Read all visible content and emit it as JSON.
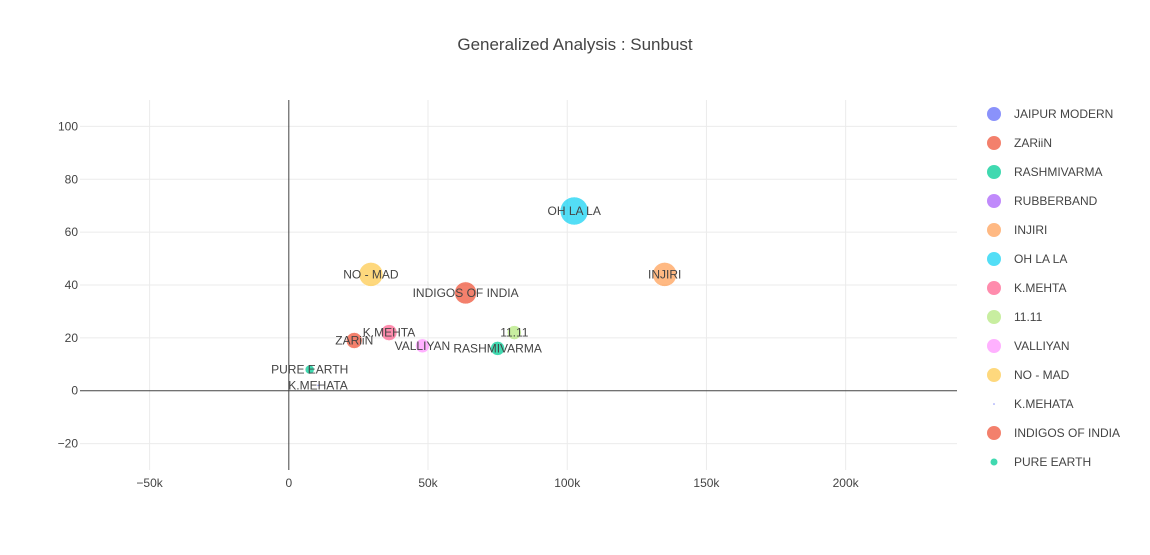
{
  "chart_data": {
    "type": "scatter",
    "title": "Generalized Analysis : Sunbust",
    "xlabel": "",
    "ylabel": "",
    "xlim": [
      -75000,
      240000
    ],
    "ylim": [
      -30,
      110
    ],
    "x_ticks": [
      -50000,
      0,
      50000,
      100000,
      150000,
      200000
    ],
    "x_tick_labels": [
      "−50k",
      "0",
      "50k",
      "100k",
      "150k",
      "200k"
    ],
    "y_ticks": [
      -20,
      0,
      20,
      40,
      60,
      80,
      100
    ],
    "y_tick_labels": [
      "−20",
      "0",
      "20",
      "40",
      "60",
      "80",
      "100"
    ],
    "grid": true,
    "legend_position": "right",
    "series": [
      {
        "name": "JAIPUR MODERN",
        "color": "#636efa",
        "x": null,
        "y": null,
        "size": 0,
        "label": ""
      },
      {
        "name": "ZARiiN",
        "color": "#EF553B",
        "x": 23500,
        "y": 19,
        "size": 16,
        "label": "ZARiiN"
      },
      {
        "name": "RASHMIVARMA",
        "color": "#00cc96",
        "x": 75000,
        "y": 16,
        "size": 14,
        "label": "RASHMIVARMA"
      },
      {
        "name": "RUBBERBAND",
        "color": "#ab63fa",
        "x": null,
        "y": null,
        "size": 0,
        "label": ""
      },
      {
        "name": "INJIRI",
        "color": "#FFA15A",
        "x": 135000,
        "y": 44,
        "size": 24,
        "label": "INJIRI"
      },
      {
        "name": "OH LA LA",
        "color": "#19d3f3",
        "x": 102500,
        "y": 68,
        "size": 28,
        "label": "OH LA LA"
      },
      {
        "name": "K.MEHTA",
        "color": "#FF6692",
        "x": 36000,
        "y": 22,
        "size": 16,
        "label": "K.MEHTA"
      },
      {
        "name": "11.11",
        "color": "#B6E880",
        "x": 81000,
        "y": 22,
        "size": 14,
        "label": "11.11"
      },
      {
        "name": "VALLIYAN",
        "color": "#FF97FF",
        "x": 48000,
        "y": 17,
        "size": 14,
        "label": "VALLIYAN"
      },
      {
        "name": "NO - MAD",
        "color": "#FECB52",
        "x": 29500,
        "y": 44,
        "size": 24,
        "label": "NO - MAD"
      },
      {
        "name": "K.MEHATA",
        "color": "#636efa",
        "x": 10500,
        "y": 2,
        "size": 2,
        "label": "K.MEHATA"
      },
      {
        "name": "INDIGOS OF INDIA",
        "color": "#EF553B",
        "x": 63500,
        "y": 37,
        "size": 22,
        "label": "INDIGOS OF INDIA"
      },
      {
        "name": "PURE EARTH",
        "color": "#00cc96",
        "x": 7500,
        "y": 8,
        "size": 9,
        "label": "PURE EARTH"
      }
    ]
  }
}
